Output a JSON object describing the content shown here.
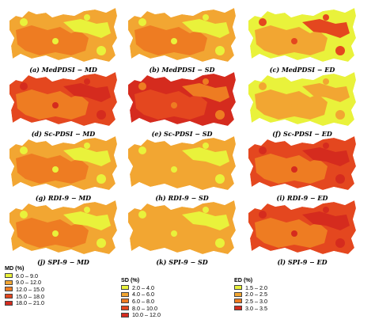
{
  "palette": {
    "c1": "#e9f23b",
    "c2": "#f2a632",
    "c3": "#ee7c22",
    "c4": "#e4471f",
    "c5": "#d52b1e"
  },
  "panels": [
    {
      "caption": "(a) MedPDSI − MD",
      "base": "c2",
      "accent": "c3",
      "spots": "c1"
    },
    {
      "caption": "(b) MedPDSI − SD",
      "base": "c2",
      "accent": "c3",
      "spots": "c1"
    },
    {
      "caption": "(c) MedPDSI − ED",
      "base": "c1",
      "accent": "c2",
      "spots": "c4"
    },
    {
      "caption": "(d) Sc-PDSI − MD",
      "base": "c4",
      "accent": "c3",
      "spots": "c5"
    },
    {
      "caption": "(e) Sc-PDSI − SD",
      "base": "c5",
      "accent": "c4",
      "spots": "c3"
    },
    {
      "caption": "(f) Sc-PDSI − ED",
      "base": "c1",
      "accent": "c2",
      "spots": "c2"
    },
    {
      "caption": "(g) RDI-9 − MD",
      "base": "c2",
      "accent": "c3",
      "spots": "c1"
    },
    {
      "caption": "(h) RDI-9 − SD",
      "base": "c2",
      "accent": "c2",
      "spots": "c1"
    },
    {
      "caption": "(i) RDI-9 − ED",
      "base": "c4",
      "accent": "c3",
      "spots": "c5"
    },
    {
      "caption": "(j) SPI-9 − MD",
      "base": "c2",
      "accent": "c3",
      "spots": "c1"
    },
    {
      "caption": "(k) SPI-9 − SD",
      "base": "c2",
      "accent": "c2",
      "spots": "c1"
    },
    {
      "caption": "(l) SPI-9 − ED",
      "base": "c4",
      "accent": "c3",
      "spots": "c5"
    }
  ],
  "legends": [
    {
      "title": "MD (%)",
      "items": [
        {
          "label": "6.0 – 9.0",
          "color": "#e9f23b"
        },
        {
          "label": "9.0 – 12.0",
          "color": "#f2a632"
        },
        {
          "label": "12.0 – 15.0",
          "color": "#ee7c22"
        },
        {
          "label": "15.0 – 18.0",
          "color": "#e4471f"
        },
        {
          "label": "18.0 – 21.0",
          "color": "#d52b1e"
        }
      ]
    },
    {
      "title": "SD (%)",
      "items": [
        {
          "label": "2.0 – 4.0",
          "color": "#e9f23b"
        },
        {
          "label": "4.0 – 6.0",
          "color": "#f2a632"
        },
        {
          "label": "6.0 – 8.0",
          "color": "#ee7c22"
        },
        {
          "label": "8.0 – 10.0",
          "color": "#e4471f"
        },
        {
          "label": "10.0 – 12.0",
          "color": "#d52b1e"
        }
      ]
    },
    {
      "title": "ED (%)",
      "items": [
        {
          "label": "1.5 – 2.0",
          "color": "#e9f23b"
        },
        {
          "label": "2.0 – 2.5",
          "color": "#f2a632"
        },
        {
          "label": "2.5 – 3.0",
          "color": "#ee7c22"
        },
        {
          "label": "3.0 – 3.5",
          "color": "#d52b1e"
        }
      ]
    }
  ]
}
